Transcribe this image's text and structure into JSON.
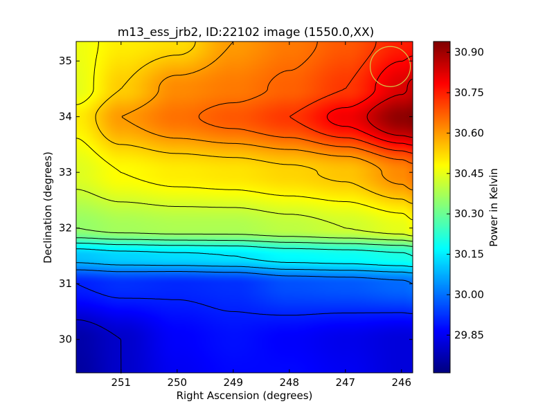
{
  "chart_data": {
    "type": "heatmap",
    "title": "m13_ess_jrb2, ID:22102 image (1550.0,XX)",
    "xlabel": "Right Ascension (degrees)",
    "ylabel": "Declination (degrees)",
    "xlim": [
      251.8,
      245.8
    ],
    "ylim": [
      29.4,
      35.35
    ],
    "x_ticks": [
      251,
      250,
      249,
      248,
      247,
      246
    ],
    "x_tick_labels": [
      "251",
      "250",
      "249",
      "248",
      "247",
      "246"
    ],
    "y_ticks": [
      30,
      31,
      32,
      33,
      34,
      35
    ],
    "y_tick_labels": [
      "30",
      "31",
      "32",
      "33",
      "34",
      "35"
    ],
    "colorbar": {
      "label": "Power in Kelvin",
      "range": [
        29.71,
        30.94
      ],
      "ticks": [
        29.85,
        30.0,
        30.15,
        30.3,
        30.45,
        30.6,
        30.75,
        30.9
      ],
      "tick_labels": [
        "29.85",
        "30.00",
        "30.15",
        "30.30",
        "30.45",
        "30.60",
        "30.75",
        "30.90"
      ],
      "colormap": "jet"
    },
    "contours": true,
    "marker": {
      "type": "circle",
      "ra": 246.2,
      "dec": 34.9,
      "color": "#d4c84a"
    },
    "grid": false,
    "x": [
      251.8,
      251.0,
      250.0,
      249.0,
      248.0,
      247.0,
      246.0,
      245.8
    ],
    "y": [
      29.4,
      30.0,
      31.0,
      31.5,
      32.0,
      33.0,
      34.0,
      34.5,
      35.35
    ],
    "z": [
      [
        29.75,
        29.8,
        29.85,
        29.87,
        29.87,
        29.85,
        29.82,
        29.82
      ],
      [
        29.76,
        29.8,
        29.86,
        29.88,
        29.86,
        29.84,
        29.82,
        29.82
      ],
      [
        29.9,
        29.92,
        29.91,
        29.92,
        29.96,
        29.97,
        29.99,
        30.0
      ],
      [
        30.1,
        30.12,
        30.13,
        30.14,
        30.17,
        30.18,
        30.2,
        30.21
      ],
      [
        30.35,
        30.37,
        30.38,
        30.38,
        30.4,
        30.42,
        30.45,
        30.47
      ],
      [
        30.44,
        30.48,
        30.5,
        30.51,
        30.53,
        30.55,
        30.62,
        30.64
      ],
      [
        30.5,
        30.6,
        30.65,
        30.68,
        30.72,
        30.8,
        30.92,
        30.93
      ],
      [
        30.45,
        30.54,
        30.62,
        30.64,
        30.67,
        30.72,
        30.83,
        30.85
      ],
      [
        30.46,
        30.5,
        30.52,
        30.6,
        30.64,
        30.68,
        30.75,
        30.76
      ]
    ],
    "contour_levels": [
      29.8,
      29.9,
      30.0,
      30.07,
      30.14,
      30.21,
      30.28,
      30.35,
      30.42,
      30.48,
      30.54,
      30.6,
      30.66,
      30.72,
      30.78,
      30.84
    ]
  }
}
